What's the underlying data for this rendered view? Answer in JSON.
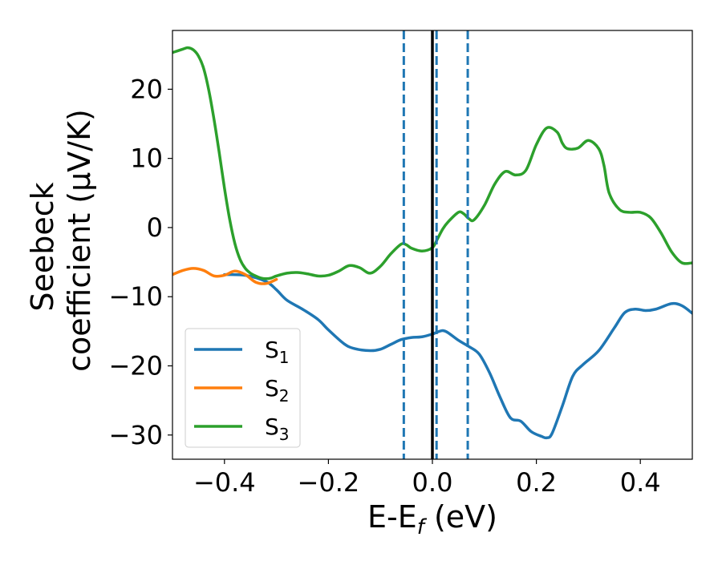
{
  "chart_data": {
    "type": "line",
    "xlabel": "E-E$_f$ (eV)",
    "xlabel_main": "E-E",
    "xlabel_sub": "f",
    "xlabel_tail": " (eV)",
    "ylabel_line1": "Seebeck",
    "ylabel_line2": "coefficient  (μV/K)",
    "xlim": [
      -0.5,
      0.5
    ],
    "ylim": [
      -33.5,
      28.5
    ],
    "xticks": [
      -0.4,
      -0.2,
      0.0,
      0.2,
      0.4
    ],
    "xtick_labels": [
      "−0.4",
      "−0.2",
      "0.0",
      "0.2",
      "0.4"
    ],
    "yticks": [
      -30,
      -20,
      -10,
      0,
      10,
      20
    ],
    "ytick_labels": [
      "−30",
      "−20",
      "−10",
      "0",
      "10",
      "20"
    ],
    "grid": false,
    "legend_position": "lower-left",
    "vlines": [
      {
        "x": -0.055,
        "style": "dashed",
        "color": "#1f77b4"
      },
      {
        "x": 0.0,
        "style": "solid",
        "color": "#000000"
      },
      {
        "x": 0.008,
        "style": "dashed",
        "color": "#1f77b4"
      },
      {
        "x": 0.068,
        "style": "dashed",
        "color": "#1f77b4"
      }
    ],
    "series": [
      {
        "name": "S1",
        "legend_main": "S",
        "legend_sub": "1",
        "color": "#1f77b4",
        "x": [
          -0.4,
          -0.36,
          -0.32,
          -0.3,
          -0.28,
          -0.25,
          -0.22,
          -0.2,
          -0.17,
          -0.15,
          -0.12,
          -0.1,
          -0.08,
          -0.06,
          -0.04,
          -0.02,
          0.0,
          0.01,
          0.02,
          0.03,
          0.05,
          0.07,
          0.09,
          0.11,
          0.13,
          0.15,
          0.17,
          0.19,
          0.21,
          0.22,
          0.23,
          0.25,
          0.27,
          0.29,
          0.32,
          0.35,
          0.37,
          0.39,
          0.41,
          0.43,
          0.46,
          0.48,
          0.5
        ],
        "y": [
          -6.8,
          -6.9,
          -7.8,
          -9.0,
          -10.5,
          -11.8,
          -13.3,
          -14.8,
          -16.8,
          -17.5,
          -17.8,
          -17.6,
          -16.9,
          -16.2,
          -15.9,
          -15.8,
          -15.4,
          -15.1,
          -14.9,
          -15.2,
          -16.3,
          -17.2,
          -18.3,
          -21.0,
          -24.5,
          -27.5,
          -28.0,
          -29.5,
          -30.2,
          -30.4,
          -29.8,
          -25.8,
          -21.5,
          -19.8,
          -17.8,
          -14.5,
          -12.3,
          -11.8,
          -12.0,
          -11.8,
          -11.0,
          -11.3,
          -12.4
        ]
      },
      {
        "name": "S2",
        "legend_main": "S",
        "legend_sub": "2",
        "color": "#ff7f0e",
        "x": [
          -0.5,
          -0.48,
          -0.46,
          -0.44,
          -0.42,
          -0.4,
          -0.38,
          -0.36,
          -0.34,
          -0.32,
          -0.3
        ],
        "y": [
          -6.8,
          -6.2,
          -5.9,
          -6.2,
          -7.0,
          -6.9,
          -6.3,
          -6.8,
          -7.9,
          -8.1,
          -7.5
        ]
      },
      {
        "name": "S3",
        "legend_main": "S",
        "legend_sub": "3",
        "color": "#2ca02c",
        "x": [
          -0.5,
          -0.48,
          -0.47,
          -0.46,
          -0.45,
          -0.44,
          -0.43,
          -0.42,
          -0.41,
          -0.4,
          -0.39,
          -0.38,
          -0.37,
          -0.36,
          -0.35,
          -0.34,
          -0.33,
          -0.32,
          -0.31,
          -0.3,
          -0.28,
          -0.26,
          -0.24,
          -0.22,
          -0.2,
          -0.18,
          -0.16,
          -0.14,
          -0.12,
          -0.1,
          -0.08,
          -0.06,
          -0.05,
          -0.04,
          -0.02,
          0.0,
          0.01,
          0.02,
          0.03,
          0.05,
          0.06,
          0.07,
          0.08,
          0.1,
          0.12,
          0.14,
          0.16,
          0.18,
          0.2,
          0.22,
          0.24,
          0.25,
          0.26,
          0.28,
          0.3,
          0.32,
          0.33,
          0.34,
          0.36,
          0.38,
          0.4,
          0.42,
          0.44,
          0.46,
          0.48,
          0.5
        ],
        "y": [
          25.3,
          25.8,
          26.0,
          25.7,
          24.8,
          23.0,
          19.8,
          15.6,
          10.8,
          5.7,
          1.2,
          -2.3,
          -4.6,
          -5.9,
          -6.6,
          -7.0,
          -7.3,
          -7.4,
          -7.3,
          -7.0,
          -6.6,
          -6.5,
          -6.7,
          -7.0,
          -6.9,
          -6.3,
          -5.5,
          -5.8,
          -6.6,
          -5.6,
          -3.8,
          -2.4,
          -2.5,
          -3.0,
          -3.4,
          -2.9,
          -1.6,
          -0.2,
          0.8,
          2.2,
          2.0,
          1.3,
          1.1,
          3.2,
          6.3,
          8.1,
          7.6,
          8.3,
          12.0,
          14.4,
          13.8,
          12.2,
          11.4,
          11.5,
          12.6,
          11.4,
          9.0,
          5.0,
          2.6,
          2.2,
          2.2,
          1.4,
          -0.8,
          -3.5,
          -5.1,
          -5.1
        ]
      }
    ]
  }
}
